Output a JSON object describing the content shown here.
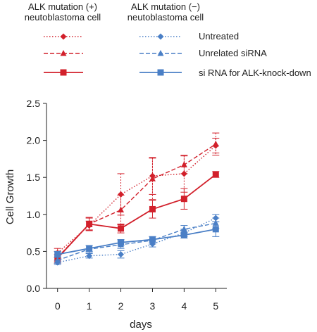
{
  "legend": {
    "group_positive": [
      "ALK mutation (+)",
      "neutoblastoma cell"
    ],
    "group_negative": [
      "ALK mutation (−)",
      "neutoblastoma cell"
    ],
    "labels": [
      "Untreated",
      "Unrelated siRNA",
      "si RNA for ALK-knock-down"
    ]
  },
  "colors": {
    "positive": "#d2202b",
    "negative": "#4a7fc6"
  },
  "chart_data": {
    "type": "line",
    "title": "",
    "xlabel": "days",
    "ylabel": "Cell Growth",
    "x": [
      0,
      1,
      2,
      3,
      4,
      5
    ],
    "xlim": [
      -0.35,
      5.35
    ],
    "ylim": [
      0,
      2.5
    ],
    "yticks": [
      "0.0",
      "0.5",
      "1.0",
      "1.5",
      "2.0",
      "2.5"
    ],
    "xticks": [
      "0",
      "1",
      "2",
      "3",
      "4",
      "5"
    ],
    "grid": false,
    "legend_position": "top",
    "series": [
      {
        "name": "Untreated",
        "group": "positive",
        "marker": "diamond",
        "line": "dotted",
        "values": [
          0.48,
          0.85,
          1.27,
          1.52,
          1.55,
          1.93
        ],
        "errors": [
          0.06,
          0.06,
          0.28,
          0.25,
          0.25,
          0.1
        ]
      },
      {
        "name": "Unrelated siRNA",
        "group": "positive",
        "marker": "triangle",
        "line": "dashed",
        "values": [
          0.42,
          0.87,
          1.06,
          1.48,
          1.67,
          1.95
        ],
        "errors": [
          0.08,
          0.09,
          0.2,
          0.28,
          0.12,
          0.15
        ]
      },
      {
        "name": "si RNA for ALK-knock-down",
        "group": "positive",
        "marker": "square",
        "line": "solid",
        "values": [
          0.41,
          0.87,
          0.81,
          1.07,
          1.21,
          1.54
        ],
        "errors": [
          0.05,
          0.08,
          0.06,
          0.12,
          0.14,
          0.04
        ]
      },
      {
        "name": "Untreated",
        "group": "negative",
        "marker": "diamond",
        "line": "dotted",
        "values": [
          0.35,
          0.44,
          0.46,
          0.6,
          0.75,
          0.95
        ],
        "errors": [
          0.03,
          0.03,
          0.05,
          0.04,
          0.05,
          0.05
        ]
      },
      {
        "name": "Unrelated siRNA",
        "group": "negative",
        "marker": "triangle",
        "line": "dashed",
        "values": [
          0.38,
          0.53,
          0.59,
          0.65,
          0.8,
          0.88
        ],
        "errors": [
          0.04,
          0.05,
          0.05,
          0.05,
          0.05,
          0.07
        ]
      },
      {
        "name": "si RNA for ALK-knock-down",
        "group": "negative",
        "marker": "square",
        "line": "solid",
        "values": [
          0.46,
          0.54,
          0.62,
          0.66,
          0.72,
          0.8
        ],
        "errors": [
          0.04,
          0.04,
          0.04,
          0.04,
          0.04,
          0.1
        ]
      }
    ]
  }
}
